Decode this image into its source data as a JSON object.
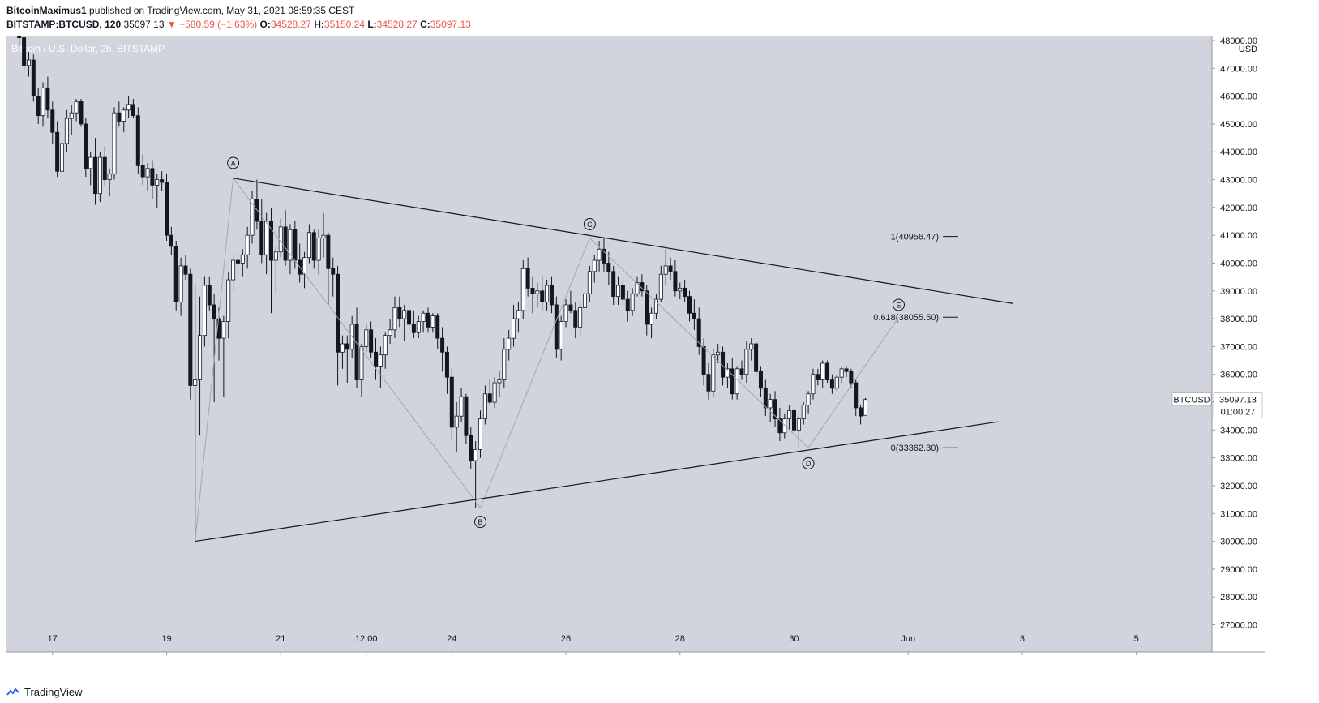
{
  "header": {
    "author": "BitcoinMaximus1",
    "published": "published on TradingView.com, May 31, 2021 08:59:35 CEST",
    "symbol": "BITSTAMP:BTCUSD, 120",
    "last": "35097.13",
    "change": "▼ −580.59 (−1.63%)",
    "o_label": "O:",
    "o_value": "34528.27",
    "h_label": "H:",
    "h_value": "35150.24",
    "l_label": "L:",
    "l_value": "34528.27",
    "c_label": "C:",
    "c_value": "35097.13"
  },
  "footer": {
    "brand": "TradingView"
  },
  "chart_data": {
    "type": "candlestick",
    "title": "Bitcoin / U.S. Dollar, 2h, BITSTAMP",
    "ylabel": "USD",
    "ylim": [
      27000,
      48000
    ],
    "y_ticks": [
      "48000.00",
      "47000.00",
      "46000.00",
      "45000.00",
      "44000.00",
      "43000.00",
      "42000.00",
      "41000.00",
      "40000.00",
      "39000.00",
      "38000.00",
      "37000.00",
      "36000.00",
      "35000.00",
      "34000.00",
      "33000.00",
      "32000.00",
      "31000.00",
      "30000.00",
      "29000.00",
      "28000.00",
      "27000.00"
    ],
    "x_ticks": [
      {
        "label": "17",
        "index": 7
      },
      {
        "label": "19",
        "index": 31
      },
      {
        "label": "21",
        "index": 55
      },
      {
        "label": "12:00",
        "index": 73
      },
      {
        "label": "24",
        "index": 91
      },
      {
        "label": "26",
        "index": 115
      },
      {
        "label": "28",
        "index": 139
      },
      {
        "label": "30",
        "index": 163
      },
      {
        "label": "Jun",
        "index": 187
      },
      {
        "label": "3",
        "index": 211
      },
      {
        "label": "5",
        "index": 235
      }
    ],
    "x_range": [
      -2,
      262
    ],
    "last_price": {
      "label": "BTCUSD",
      "value": 35097.13,
      "display": "35097.13",
      "countdown": "01:00:27"
    },
    "candles": [
      [
        48500,
        48800,
        47800,
        48100
      ],
      [
        48100,
        48400,
        46900,
        47100
      ],
      [
        47100,
        47600,
        46700,
        47300
      ],
      [
        47300,
        47500,
        45800,
        46000
      ],
      [
        46000,
        46300,
        45000,
        45300
      ],
      [
        45300,
        46500,
        44900,
        46300
      ],
      [
        46300,
        46700,
        45200,
        45500
      ],
      [
        45500,
        45800,
        44300,
        44700
      ],
      [
        44700,
        45100,
        43100,
        43300
      ],
      [
        43300,
        44600,
        42200,
        44300
      ],
      [
        44300,
        45500,
        44000,
        45200
      ],
      [
        45200,
        45700,
        44600,
        45400
      ],
      [
        45400,
        45900,
        45100,
        45800
      ],
      [
        45800,
        45900,
        44900,
        45000
      ],
      [
        45000,
        45200,
        43100,
        43400
      ],
      [
        43400,
        44000,
        42800,
        43800
      ],
      [
        43800,
        44500,
        42100,
        42500
      ],
      [
        42500,
        44000,
        42200,
        43800
      ],
      [
        43800,
        44200,
        42800,
        43000
      ],
      [
        43000,
        43400,
        42400,
        43200
      ],
      [
        43200,
        45600,
        43000,
        45400
      ],
      [
        45400,
        45800,
        44900,
        45100
      ],
      [
        45100,
        45600,
        44700,
        45500
      ],
      [
        45500,
        46000,
        45200,
        45700
      ],
      [
        45700,
        45900,
        45200,
        45300
      ],
      [
        45300,
        45600,
        43200,
        43500
      ],
      [
        43500,
        43900,
        42800,
        43100
      ],
      [
        43100,
        43600,
        42600,
        43400
      ],
      [
        43400,
        43700,
        42300,
        42800
      ],
      [
        42800,
        43200,
        42000,
        43000
      ],
      [
        43000,
        43300,
        42600,
        42900
      ],
      [
        42900,
        43200,
        40800,
        41000
      ],
      [
        41000,
        41300,
        40300,
        40600
      ],
      [
        40600,
        40800,
        38300,
        38600
      ],
      [
        38600,
        40200,
        38100,
        39900
      ],
      [
        39900,
        40300,
        39400,
        39600
      ],
      [
        39600,
        39800,
        35100,
        35600
      ],
      [
        35600,
        39200,
        30000,
        35800
      ],
      [
        35800,
        38800,
        33800,
        37400
      ],
      [
        37400,
        39500,
        37000,
        39200
      ],
      [
        39200,
        39500,
        38300,
        38500
      ],
      [
        38500,
        38900,
        35000,
        38000
      ],
      [
        38000,
        38400,
        36500,
        37300
      ],
      [
        37300,
        38100,
        35200,
        37900
      ],
      [
        37900,
        39700,
        37300,
        39400
      ],
      [
        39400,
        40300,
        39000,
        40100
      ],
      [
        40100,
        40400,
        39600,
        40000
      ],
      [
        40000,
        40500,
        39500,
        40300
      ],
      [
        40300,
        41300,
        39800,
        41000
      ],
      [
        41000,
        42600,
        40700,
        42300
      ],
      [
        42300,
        43000,
        41200,
        41500
      ],
      [
        41500,
        42300,
        40000,
        40300
      ],
      [
        40300,
        41800,
        39600,
        41500
      ],
      [
        41500,
        42000,
        38200,
        40100
      ],
      [
        40100,
        40600,
        38900,
        40400
      ],
      [
        40400,
        41600,
        40200,
        41300
      ],
      [
        41300,
        41900,
        39900,
        40100
      ],
      [
        40100,
        41400,
        39600,
        41200
      ],
      [
        41200,
        41500,
        39800,
        40100
      ],
      [
        40100,
        40700,
        39300,
        39600
      ],
      [
        39600,
        40400,
        39100,
        40200
      ],
      [
        40200,
        41400,
        40000,
        41100
      ],
      [
        41100,
        41200,
        39800,
        40100
      ],
      [
        40100,
        41200,
        39600,
        40900
      ],
      [
        40900,
        41800,
        40200,
        41000
      ],
      [
        41000,
        41100,
        38500,
        39800
      ],
      [
        39800,
        40200,
        38800,
        39600
      ],
      [
        39600,
        39900,
        35600,
        36800
      ],
      [
        36800,
        37400,
        36200,
        37100
      ],
      [
        37100,
        37400,
        35700,
        36900
      ],
      [
        36900,
        38100,
        36600,
        37800
      ],
      [
        37800,
        38400,
        35500,
        35800
      ],
      [
        35800,
        37100,
        35200,
        37000
      ],
      [
        37000,
        37800,
        36800,
        37600
      ],
      [
        37600,
        37900,
        36600,
        36800
      ],
      [
        36800,
        37300,
        35800,
        36300
      ],
      [
        36300,
        37000,
        35500,
        36700
      ],
      [
        36700,
        37500,
        36200,
        37400
      ],
      [
        37400,
        38000,
        37100,
        37600
      ],
      [
        37600,
        38800,
        37300,
        38400
      ],
      [
        38400,
        38800,
        37700,
        38000
      ],
      [
        38000,
        38500,
        37200,
        38300
      ],
      [
        38300,
        38600,
        37600,
        37800
      ],
      [
        37800,
        38300,
        37300,
        37500
      ],
      [
        37500,
        38100,
        37300,
        37900
      ],
      [
        37900,
        38300,
        37500,
        38200
      ],
      [
        38200,
        38400,
        37500,
        37700
      ],
      [
        37700,
        38200,
        37500,
        38100
      ],
      [
        38100,
        38200,
        36900,
        37300
      ],
      [
        37300,
        37700,
        36100,
        36800
      ],
      [
        36800,
        37000,
        35300,
        35900
      ],
      [
        35900,
        36200,
        33600,
        34100
      ],
      [
        34100,
        35000,
        33200,
        34500
      ],
      [
        34500,
        35500,
        34300,
        35200
      ],
      [
        35200,
        35300,
        33500,
        33800
      ],
      [
        33800,
        34100,
        32600,
        32900
      ],
      [
        32900,
        33600,
        31200,
        33300
      ],
      [
        33300,
        34700,
        33000,
        34400
      ],
      [
        34400,
        35600,
        34200,
        35300
      ],
      [
        35300,
        35800,
        34900,
        35000
      ],
      [
        35000,
        35900,
        34800,
        35700
      ],
      [
        35700,
        36100,
        35200,
        35800
      ],
      [
        35800,
        37300,
        35500,
        36900
      ],
      [
        36900,
        37600,
        36500,
        37300
      ],
      [
        37300,
        38500,
        37000,
        38000
      ],
      [
        38000,
        38600,
        37500,
        38300
      ],
      [
        38300,
        40100,
        38000,
        39800
      ],
      [
        39800,
        40200,
        38800,
        39100
      ],
      [
        39100,
        39500,
        38200,
        38900
      ],
      [
        38900,
        39300,
        38400,
        39000
      ],
      [
        39000,
        39500,
        38300,
        38600
      ],
      [
        38600,
        39400,
        38300,
        39200
      ],
      [
        39200,
        39500,
        38200,
        38500
      ],
      [
        38500,
        38800,
        36600,
        36900
      ],
      [
        36900,
        38100,
        36500,
        37900
      ],
      [
        37900,
        38700,
        37700,
        38500
      ],
      [
        38500,
        39000,
        38200,
        38300
      ],
      [
        38300,
        38600,
        37300,
        37700
      ],
      [
        37700,
        38600,
        37400,
        38400
      ],
      [
        38400,
        38700,
        37800,
        38900
      ],
      [
        38900,
        39900,
        38600,
        39700
      ],
      [
        39700,
        40300,
        39300,
        40100
      ],
      [
        40100,
        40800,
        39700,
        40500
      ],
      [
        40500,
        40900,
        39700,
        40000
      ],
      [
        40000,
        40400,
        39200,
        39700
      ],
      [
        39700,
        39900,
        38500,
        38800
      ],
      [
        38800,
        39500,
        38500,
        39200
      ],
      [
        39200,
        39400,
        38500,
        38700
      ],
      [
        38700,
        39000,
        37900,
        38300
      ],
      [
        38300,
        39100,
        38100,
        38900
      ],
      [
        38900,
        39500,
        38800,
        39300
      ],
      [
        39300,
        39600,
        38800,
        39000
      ],
      [
        39000,
        39200,
        37400,
        37800
      ],
      [
        37800,
        38400,
        37300,
        38200
      ],
      [
        38200,
        38900,
        38000,
        38700
      ],
      [
        38700,
        39900,
        38600,
        39600
      ],
      [
        39600,
        40500,
        39200,
        39900
      ],
      [
        39900,
        40200,
        39400,
        39700
      ],
      [
        39700,
        40100,
        38800,
        39000
      ],
      [
        39000,
        39300,
        38700,
        39100
      ],
      [
        39100,
        39400,
        38600,
        38800
      ],
      [
        38800,
        39000,
        37900,
        38200
      ],
      [
        38200,
        38700,
        37600,
        38000
      ],
      [
        38000,
        38400,
        36700,
        37000
      ],
      [
        37000,
        37300,
        35600,
        36000
      ],
      [
        36000,
        36400,
        35100,
        35400
      ],
      [
        35400,
        36900,
        35200,
        36700
      ],
      [
        36700,
        37100,
        36400,
        36800
      ],
      [
        36800,
        37000,
        35600,
        35900
      ],
      [
        35900,
        36400,
        35500,
        36200
      ],
      [
        36200,
        36600,
        35100,
        35300
      ],
      [
        35300,
        36300,
        35100,
        36200
      ],
      [
        36200,
        36500,
        35800,
        36000
      ],
      [
        36000,
        37200,
        35700,
        36900
      ],
      [
        36900,
        37300,
        36500,
        37100
      ],
      [
        37100,
        37200,
        35900,
        36100
      ],
      [
        36100,
        36300,
        35200,
        35500
      ],
      [
        35500,
        35800,
        34500,
        34800
      ],
      [
        34800,
        35300,
        34300,
        35100
      ],
      [
        35100,
        35400,
        34100,
        34400
      ],
      [
        34400,
        34800,
        33600,
        33900
      ],
      [
        33900,
        34600,
        33700,
        34400
      ],
      [
        34400,
        34900,
        34000,
        34700
      ],
      [
        34700,
        34900,
        33700,
        34000
      ],
      [
        34000,
        34500,
        33400,
        34400
      ],
      [
        34400,
        35000,
        34200,
        34900
      ],
      [
        34900,
        35400,
        34600,
        35300
      ],
      [
        35300,
        36200,
        35100,
        36000
      ],
      [
        36000,
        36200,
        35600,
        35800
      ],
      [
        35800,
        36500,
        35500,
        36400
      ],
      [
        36400,
        36500,
        35700,
        35800
      ],
      [
        35800,
        36000,
        35300,
        35500
      ],
      [
        35500,
        36000,
        35400,
        35900
      ],
      [
        35900,
        36300,
        35700,
        36200
      ],
      [
        36200,
        36300,
        35900,
        36100
      ],
      [
        36100,
        36200,
        35500,
        35700
      ],
      [
        35700,
        35800,
        34500,
        34800
      ],
      [
        34800,
        34900,
        34200,
        34500
      ],
      [
        34528.27,
        35150.24,
        34528.27,
        35097.13
      ]
    ],
    "trendlines": [
      {
        "name": "upper",
        "p1": {
          "i": 45,
          "v": 43050
        },
        "p2": {
          "i": 209,
          "v": 38550
        }
      },
      {
        "name": "lower",
        "p1": {
          "i": 37,
          "v": 30000
        },
        "p2": {
          "i": 206,
          "v": 34300
        }
      }
    ],
    "wave_path": [
      {
        "i": 37,
        "v": 30000
      },
      {
        "i": 45,
        "v": 43050
      },
      {
        "i": 97,
        "v": 31200
      },
      {
        "i": 120,
        "v": 40900
      },
      {
        "i": 166,
        "v": 33362.3
      },
      {
        "i": 185,
        "v": 38055.5
      }
    ],
    "wave_labels": [
      {
        "text": "A",
        "i": 45,
        "v": 43600
      },
      {
        "text": "B",
        "i": 97,
        "v": 30700
      },
      {
        "text": "C",
        "i": 120,
        "v": 41400
      },
      {
        "text": "D",
        "i": 166,
        "v": 32800
      },
      {
        "text": "E",
        "i": 185,
        "v": 38500
      }
    ],
    "fib_levels": [
      {
        "label": "1(40956.47)",
        "value": 40956.47
      },
      {
        "label": "0.618(38055.50)",
        "value": 38055.5
      },
      {
        "label": "0(33362.30)",
        "value": 33362.3
      }
    ],
    "colors": {
      "background": "#d1d4dc",
      "up": "#ffffff",
      "down": "#131722",
      "wave": "#a3a6af",
      "line": "#131722",
      "label_bg": "#ffffff",
      "price_label": "#ffffff"
    }
  }
}
